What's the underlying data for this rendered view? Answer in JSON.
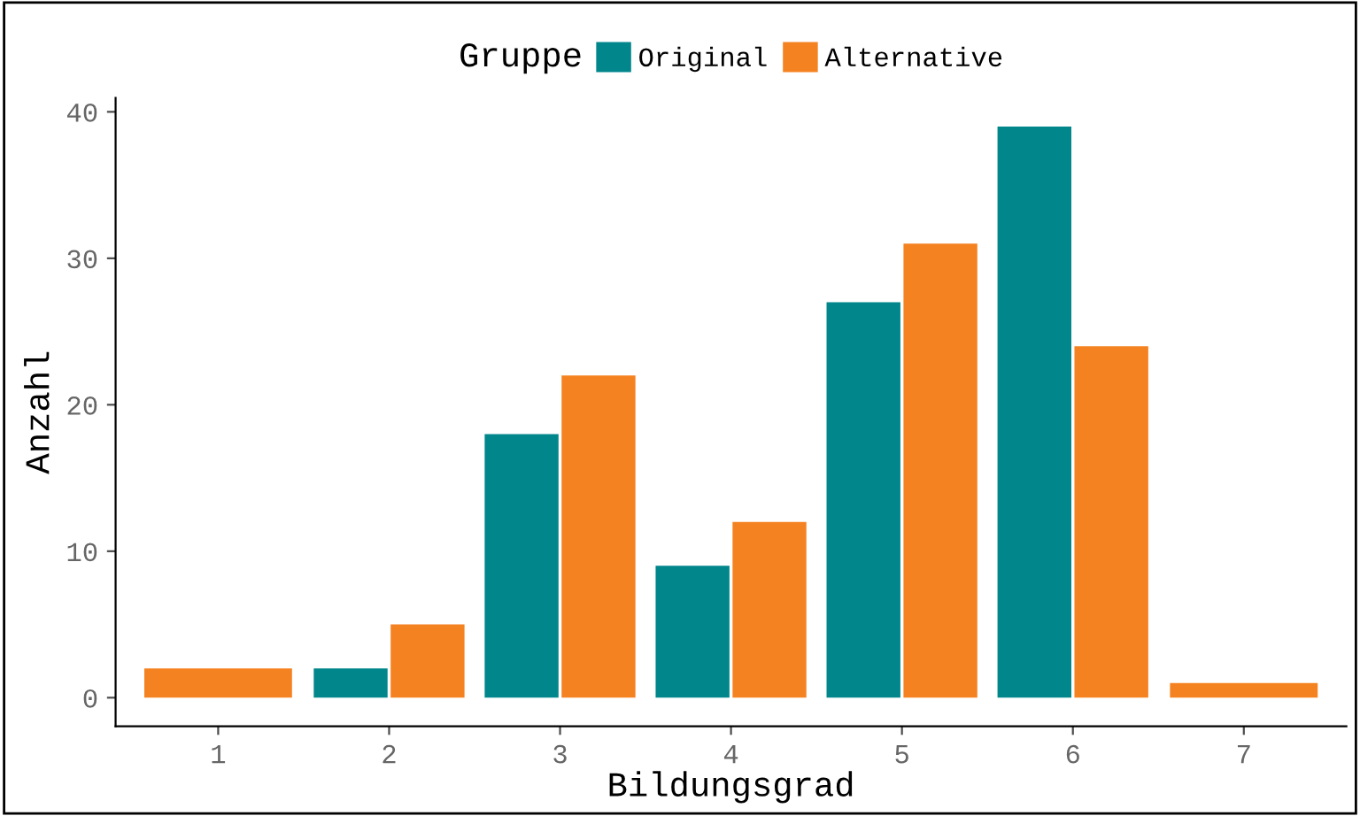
{
  "chart_data": {
    "type": "bar",
    "xlabel": "Bildungsgrad",
    "ylabel": "Anzahl",
    "legend_title": "Gruppe",
    "legend": "top",
    "categories": [
      "1",
      "2",
      "3",
      "4",
      "5",
      "6",
      "7"
    ],
    "series": [
      {
        "name": "Original",
        "color": "#00868b",
        "values": [
          null,
          2,
          18,
          9,
          27,
          39,
          null
        ]
      },
      {
        "name": "Alternative",
        "color": "#f58220",
        "values": [
          2,
          5,
          22,
          12,
          31,
          24,
          1
        ]
      }
    ],
    "ylim": [
      -1.95,
      40.95
    ],
    "yticks": [
      0,
      10,
      20,
      30,
      40
    ],
    "grid": false
  }
}
